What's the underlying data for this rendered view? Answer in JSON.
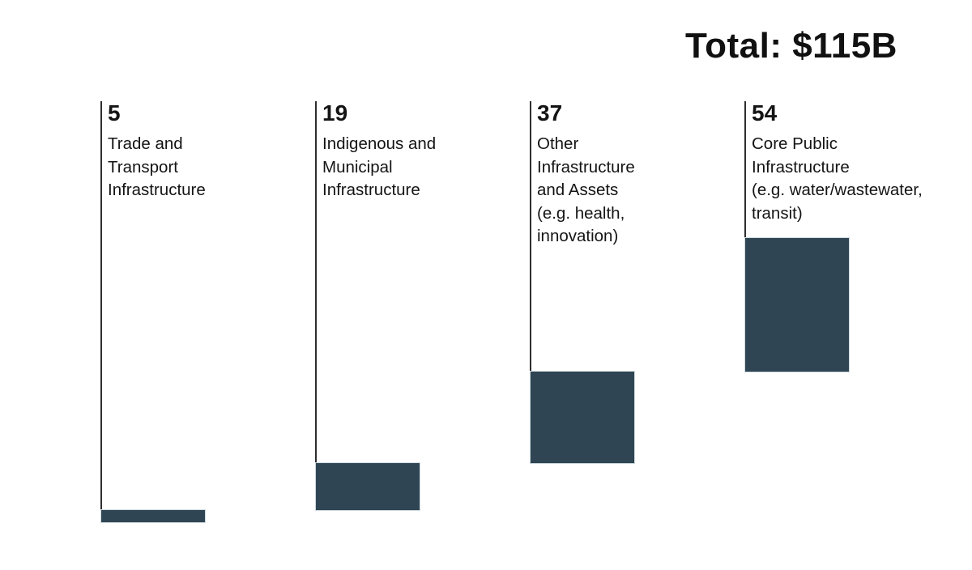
{
  "title": "Total: $115B",
  "colors": {
    "background": "#ffffff",
    "bar_fill": "#2f4553",
    "bar_border": "#cfdade",
    "connector_line": "#2e2e2e",
    "text": "#141414"
  },
  "chart_data": {
    "type": "bar",
    "variant": "waterfall",
    "orientation": "vertical",
    "title": "Total: $115B",
    "total": 115,
    "unit": "$B",
    "grid": false,
    "legend": false,
    "axes_hidden": true,
    "categories": [
      "Trade and Transport Infrastructure",
      "Indigenous and Municipal Infrastructure",
      "Other Infrastructure and Assets (e.g. health, innovation)",
      "Core Public Infrastructure (e.g. water/wastewater, transit)"
    ],
    "values": [
      5,
      19,
      37,
      54
    ],
    "bars": [
      {
        "value": "5",
        "label": "Trade and\nTransport\nInfrastructure"
      },
      {
        "value": "19",
        "label": "Indigenous and\nMunicipal\nInfrastructure"
      },
      {
        "value": "37",
        "label": "Other\nInfrastructure\nand Assets\n(e.g. health,\ninnovation)"
      },
      {
        "value": "54",
        "label": "Core Public\nInfrastructure\n(e.g. water/wastewater,\ntransit)"
      }
    ]
  }
}
